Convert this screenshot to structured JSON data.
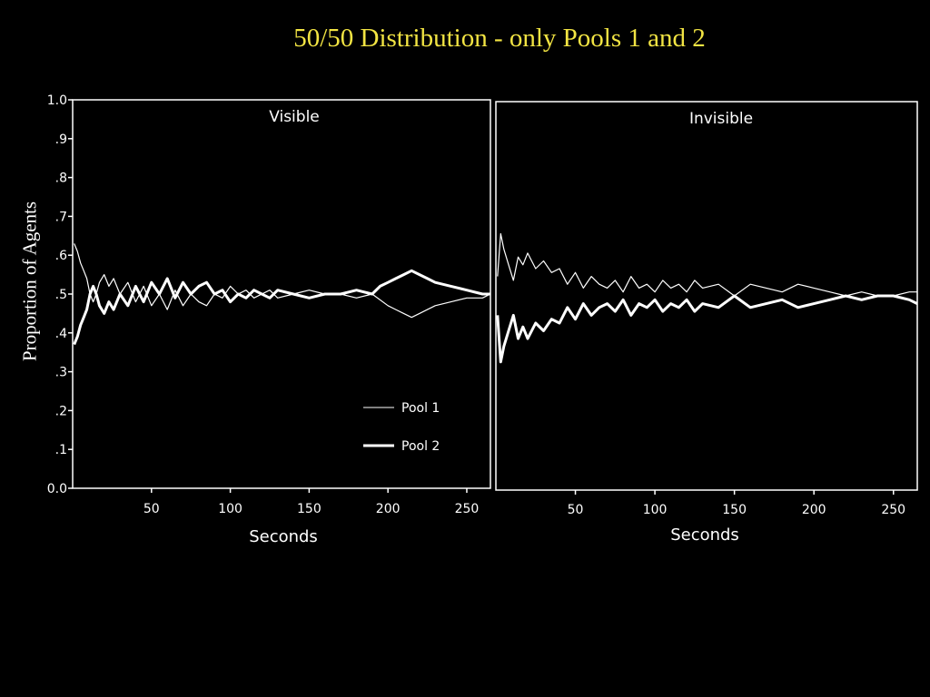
{
  "title": "50/50 Distribution - only Pools 1 and 2",
  "y_axis_label": "Proportion of Agents",
  "legend": {
    "pool1_label": "Pool 1",
    "pool2_label": "Pool 2"
  },
  "colors": {
    "background": "#000000",
    "title": "#f2e443",
    "lines": "#ffffff"
  },
  "chart_data": [
    {
      "type": "line",
      "title": "Visible",
      "xlabel": "Seconds",
      "ylabel": "Proportion of Agents",
      "xlim": [
        0,
        265
      ],
      "ylim": [
        0,
        1
      ],
      "xticks": [
        50,
        100,
        150,
        200,
        250
      ],
      "xtick_labels": [
        "50",
        "100",
        "150",
        "200",
        "250"
      ],
      "yticks": [
        0,
        0.1,
        0.2,
        0.3,
        0.4,
        0.5,
        0.6,
        0.7,
        0.8,
        0.9,
        1.0
      ],
      "ytick_labels": [
        "0.0",
        ".1",
        ".2",
        ".3",
        ".4",
        ".5",
        ".6",
        ".7",
        ".8",
        ".9",
        "1.0"
      ],
      "legend_position": "bottom-right",
      "grid": false,
      "series": [
        {
          "name": "Pool 1",
          "x": [
            1,
            3,
            5,
            7,
            9,
            11,
            13,
            15,
            17,
            20,
            23,
            26,
            30,
            35,
            40,
            45,
            50,
            55,
            60,
            65,
            70,
            75,
            80,
            85,
            90,
            95,
            100,
            105,
            110,
            115,
            120,
            125,
            130,
            140,
            150,
            160,
            170,
            180,
            190,
            200,
            205,
            210,
            215,
            220,
            225,
            230,
            240,
            250,
            260,
            265
          ],
          "y": [
            0.63,
            0.61,
            0.58,
            0.56,
            0.54,
            0.5,
            0.48,
            0.5,
            0.53,
            0.55,
            0.52,
            0.54,
            0.5,
            0.53,
            0.48,
            0.52,
            0.47,
            0.5,
            0.46,
            0.51,
            0.47,
            0.5,
            0.48,
            0.47,
            0.5,
            0.49,
            0.52,
            0.5,
            0.51,
            0.49,
            0.5,
            0.51,
            0.49,
            0.5,
            0.51,
            0.5,
            0.5,
            0.49,
            0.5,
            0.47,
            0.46,
            0.45,
            0.44,
            0.45,
            0.46,
            0.47,
            0.48,
            0.49,
            0.49,
            0.5
          ]
        },
        {
          "name": "Pool 2",
          "x": [
            1,
            3,
            5,
            7,
            9,
            11,
            13,
            15,
            17,
            20,
            23,
            26,
            30,
            35,
            40,
            45,
            50,
            55,
            60,
            65,
            70,
            75,
            80,
            85,
            90,
            95,
            100,
            105,
            110,
            115,
            120,
            125,
            130,
            140,
            150,
            160,
            170,
            180,
            190,
            195,
            200,
            205,
            210,
            215,
            220,
            225,
            230,
            240,
            250,
            260,
            265
          ],
          "y": [
            0.37,
            0.39,
            0.42,
            0.44,
            0.46,
            0.5,
            0.52,
            0.5,
            0.47,
            0.45,
            0.48,
            0.46,
            0.5,
            0.47,
            0.52,
            0.48,
            0.53,
            0.5,
            0.54,
            0.49,
            0.53,
            0.5,
            0.52,
            0.53,
            0.5,
            0.51,
            0.48,
            0.5,
            0.49,
            0.51,
            0.5,
            0.49,
            0.51,
            0.5,
            0.49,
            0.5,
            0.5,
            0.51,
            0.5,
            0.52,
            0.53,
            0.54,
            0.55,
            0.56,
            0.55,
            0.54,
            0.53,
            0.52,
            0.51,
            0.5,
            0.5
          ]
        }
      ]
    },
    {
      "type": "line",
      "title": "Invisible",
      "xlabel": "Seconds",
      "xlim": [
        0,
        265
      ],
      "ylim": [
        0,
        1
      ],
      "xticks": [
        50,
        100,
        150,
        200,
        250
      ],
      "xtick_labels": [
        "50",
        "100",
        "150",
        "200",
        "250"
      ],
      "grid": false,
      "series": [
        {
          "name": "Pool 1",
          "x": [
            1,
            3,
            5,
            8,
            11,
            14,
            17,
            20,
            25,
            30,
            35,
            40,
            45,
            50,
            55,
            60,
            65,
            70,
            75,
            80,
            85,
            90,
            95,
            100,
            105,
            110,
            115,
            120,
            125,
            130,
            140,
            150,
            160,
            170,
            180,
            190,
            200,
            210,
            220,
            230,
            240,
            250,
            260,
            265
          ],
          "y": [
            0.55,
            0.66,
            0.62,
            0.58,
            0.54,
            0.6,
            0.58,
            0.61,
            0.57,
            0.59,
            0.56,
            0.57,
            0.53,
            0.56,
            0.52,
            0.55,
            0.53,
            0.52,
            0.54,
            0.51,
            0.55,
            0.52,
            0.53,
            0.51,
            0.54,
            0.52,
            0.53,
            0.51,
            0.54,
            0.52,
            0.53,
            0.5,
            0.53,
            0.52,
            0.51,
            0.53,
            0.52,
            0.51,
            0.5,
            0.51,
            0.5,
            0.5,
            0.51,
            0.51
          ]
        },
        {
          "name": "Pool 2",
          "x": [
            1,
            3,
            5,
            8,
            11,
            14,
            17,
            20,
            25,
            30,
            35,
            40,
            45,
            50,
            55,
            60,
            65,
            70,
            75,
            80,
            85,
            90,
            95,
            100,
            105,
            110,
            115,
            120,
            125,
            130,
            140,
            150,
            160,
            170,
            180,
            190,
            200,
            210,
            220,
            230,
            240,
            250,
            260,
            265
          ],
          "y": [
            0.45,
            0.33,
            0.37,
            0.41,
            0.45,
            0.39,
            0.42,
            0.39,
            0.43,
            0.41,
            0.44,
            0.43,
            0.47,
            0.44,
            0.48,
            0.45,
            0.47,
            0.48,
            0.46,
            0.49,
            0.45,
            0.48,
            0.47,
            0.49,
            0.46,
            0.48,
            0.47,
            0.49,
            0.46,
            0.48,
            0.47,
            0.5,
            0.47,
            0.48,
            0.49,
            0.47,
            0.48,
            0.49,
            0.5,
            0.49,
            0.5,
            0.5,
            0.49,
            0.48
          ]
        }
      ]
    }
  ]
}
